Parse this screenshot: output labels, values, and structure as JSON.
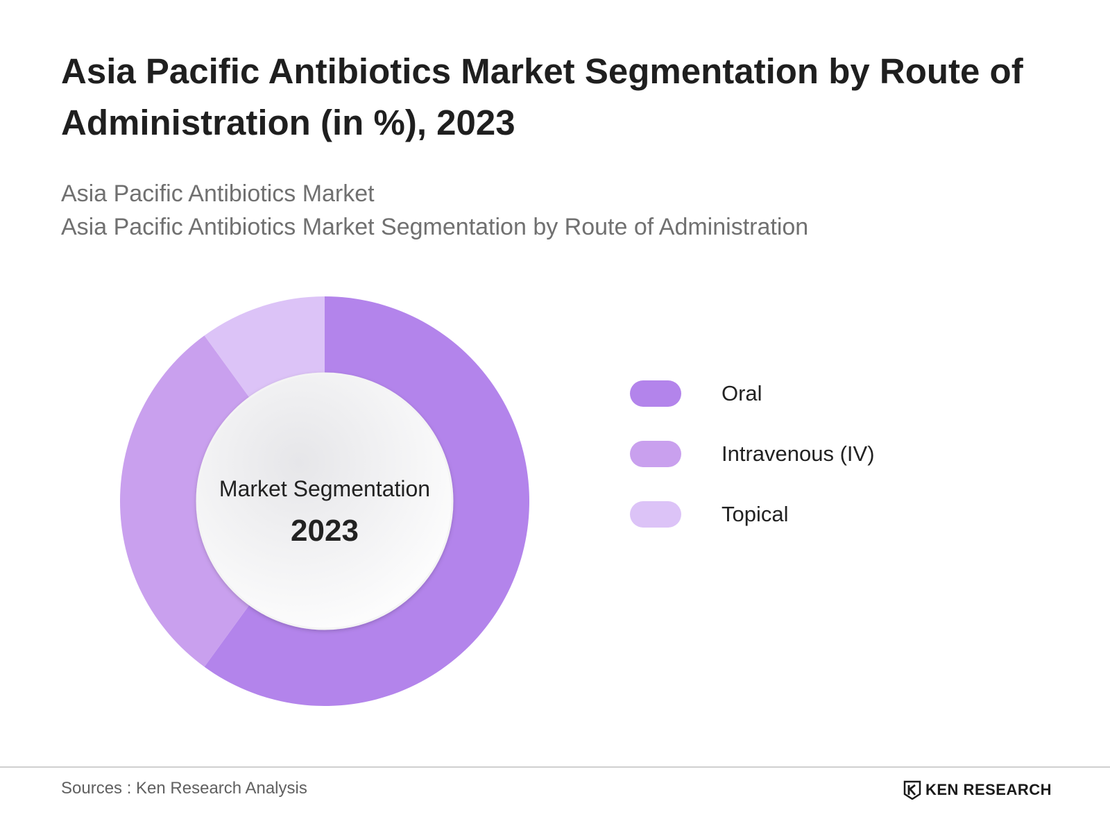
{
  "chart_data": {
    "type": "pie",
    "title": "Asia Pacific Antibiotics Market Segmentation by Route of Administration (in %), 2023",
    "subtitle_lines": [
      "Asia Pacific Antibiotics Market",
      "Asia Pacific Antibiotics Market Segmentation by Route of Administration"
    ],
    "categories": [
      "Oral",
      "Intravenous (IV)",
      "Topical"
    ],
    "values": [
      60,
      30,
      10
    ],
    "colors": [
      "#b384eb",
      "#c9a0ee",
      "#dcc3f7"
    ],
    "center_label": "Market Segmentation",
    "center_value": "2023",
    "legend_position": "right"
  },
  "footer": {
    "source": "Sources : Ken Research Analysis",
    "logo_text": "KEN RESEARCH",
    "logo_icon": "ken-research-logo-icon"
  }
}
